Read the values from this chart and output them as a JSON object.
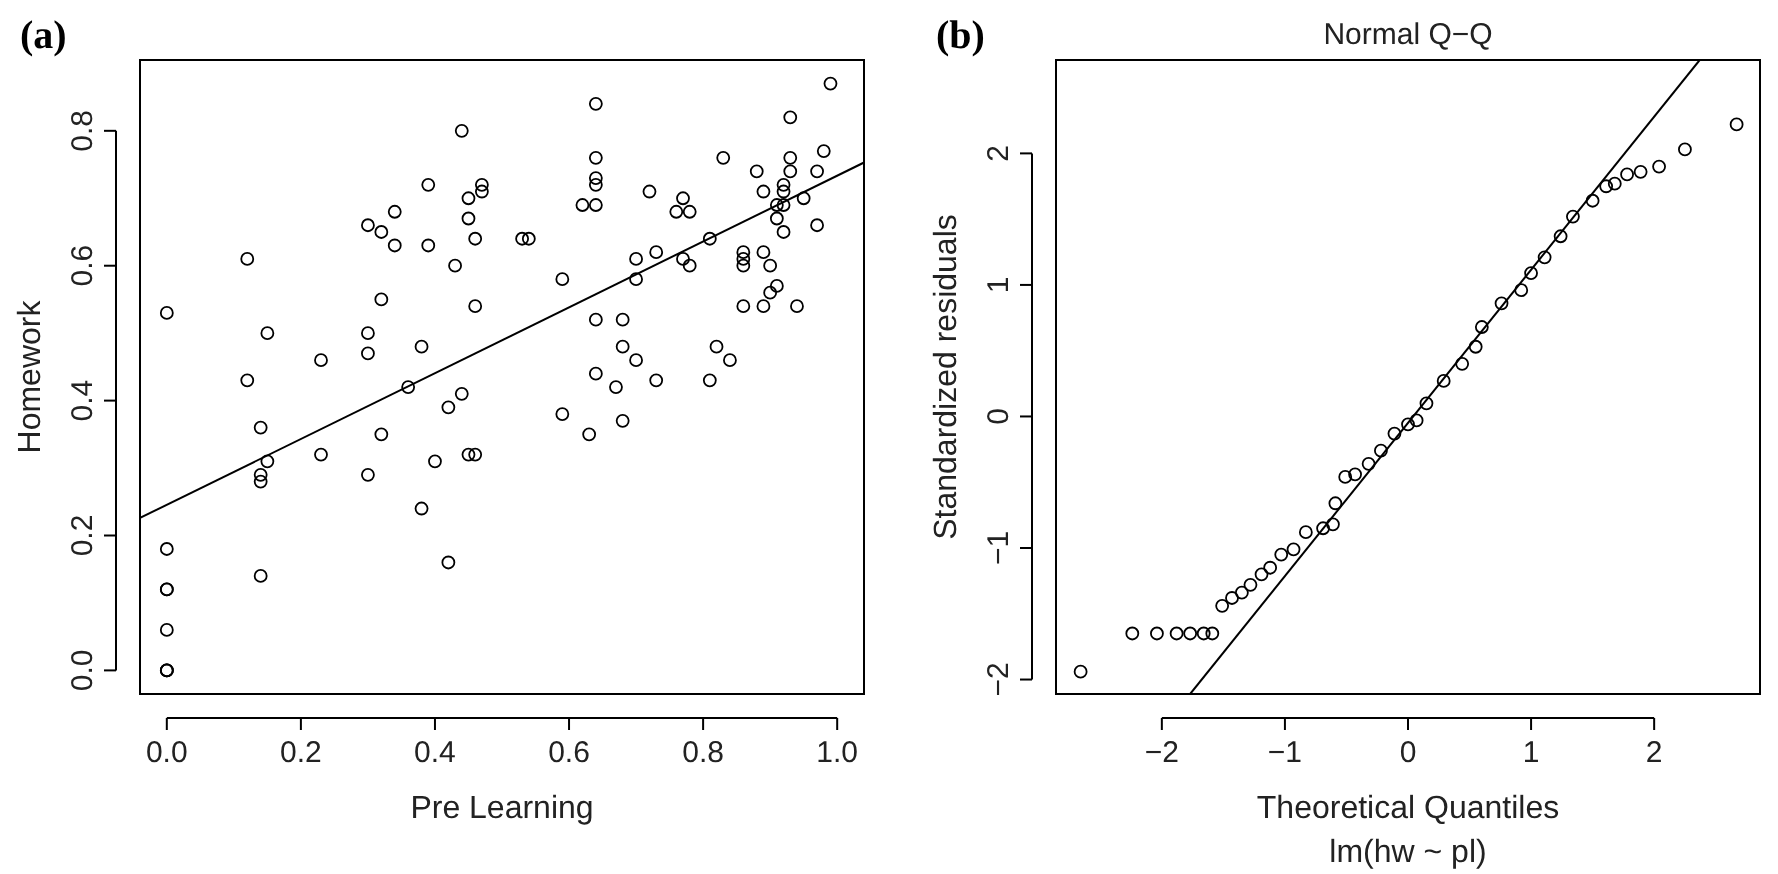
{
  "chart_data": [
    {
      "type": "scatter",
      "ylabel": "Homework",
      "xlabel": "Pre Learning",
      "annotations": [
        "(a)"
      ],
      "xlim": [
        -0.04,
        1.04
      ],
      "ylim": [
        -0.035,
        0.905
      ],
      "xticks": [
        {
          "value": 0,
          "label": "0.0"
        },
        {
          "value": 0.2,
          "label": "0.2"
        },
        {
          "value": 0.4,
          "label": "0.4"
        },
        {
          "value": 0.6,
          "label": "0.6"
        },
        {
          "value": 0.8,
          "label": "0.8"
        },
        {
          "value": 1,
          "label": "1.0"
        }
      ],
      "yticks": [
        {
          "value": 0,
          "label": "0.0"
        },
        {
          "value": 0.2,
          "label": "0.2"
        },
        {
          "value": 0.4,
          "label": "0.4"
        },
        {
          "value": 0.6,
          "label": "0.6"
        },
        {
          "value": 0.8,
          "label": "0.8"
        }
      ],
      "series": [
        {
          "marker": "circle",
          "color": "#000000",
          "x": [
            0,
            0.12,
            0.15,
            0.12,
            0.23,
            0.3,
            0.32,
            0.34,
            0.34,
            0.39,
            0.39,
            0.32,
            0.3,
            0.3,
            0.38,
            0.36,
            0.43,
            0.44,
            0.45,
            0.45,
            0.46,
            0.46,
            0.47,
            0.47,
            0.44,
            0.53,
            0.54,
            0.59,
            0.62,
            0.64,
            0.64,
            0.64,
            0.64,
            0.64,
            0.64,
            0.68,
            0.68,
            0.7,
            0.64,
            0.67,
            0.73,
            0.7,
            0.7,
            0.73,
            0.72,
            0.76,
            0.77,
            0.78,
            0.77,
            0.78,
            0.81,
            0.83,
            0.82,
            0.84,
            0.81,
            0.86,
            0.86,
            0.86,
            0.89,
            0.86,
            0.89,
            0.9,
            0.9,
            0.91,
            0.94,
            0.88,
            0.89,
            0.91,
            0.91,
            0.92,
            0.92,
            0.92,
            0.92,
            0.93,
            0.93,
            0.93,
            0.95,
            0.97,
            0.97,
            0.98,
            0.99,
            0.14,
            0.14,
            0.14,
            0.15,
            0.14,
            0.23,
            0.3,
            0.32,
            0.38,
            0.4,
            0.42,
            0.42,
            0.45,
            0.46,
            0.59,
            0.63,
            0.68,
            0,
            0,
            0,
            0,
            0,
            0,
            0
          ],
          "values": [
            0.53,
            0.61,
            0.5,
            0.43,
            0.46,
            0.66,
            0.65,
            0.68,
            0.63,
            0.72,
            0.63,
            0.55,
            0.5,
            0.47,
            0.48,
            0.42,
            0.6,
            0.8,
            0.7,
            0.67,
            0.64,
            0.54,
            0.72,
            0.71,
            0.41,
            0.64,
            0.64,
            0.58,
            0.69,
            0.69,
            0.84,
            0.76,
            0.73,
            0.72,
            0.52,
            0.52,
            0.48,
            0.46,
            0.44,
            0.42,
            0.43,
            0.61,
            0.58,
            0.62,
            0.71,
            0.68,
            0.7,
            0.68,
            0.61,
            0.6,
            0.64,
            0.76,
            0.48,
            0.46,
            0.43,
            0.62,
            0.61,
            0.6,
            0.62,
            0.54,
            0.54,
            0.6,
            0.56,
            0.57,
            0.54,
            0.74,
            0.71,
            0.69,
            0.67,
            0.65,
            0.69,
            0.72,
            0.71,
            0.74,
            0.76,
            0.82,
            0.7,
            0.74,
            0.66,
            0.77,
            0.87,
            0.36,
            0.29,
            0.28,
            0.31,
            0.14,
            0.32,
            0.29,
            0.35,
            0.24,
            0.31,
            0.39,
            0.16,
            0.32,
            0.32,
            0.38,
            0.35,
            0.37,
            0.18,
            0.12,
            0.12,
            0.06,
            0,
            0,
            0
          ]
        },
        {
          "type": "line",
          "color": "#000000",
          "x": [
            -0.04,
            1.04
          ],
          "values": [
            0.226,
            0.753
          ]
        }
      ]
    },
    {
      "type": "scatter",
      "title": "Normal Q−Q",
      "xlabel": "Theoretical Quantiles",
      "subtitle": "lm(hw ~ pl)",
      "ylabel": "Standardized residuals",
      "annotations": [
        "(b)"
      ],
      "xlim": [
        -2.86,
        2.86
      ],
      "ylim": [
        -2.11,
        2.71
      ],
      "xticks": [
        {
          "value": -2,
          "label": "−2"
        },
        {
          "value": -1,
          "label": "−1"
        },
        0,
        1,
        2
      ],
      "yticks": [
        {
          "value": -2,
          "label": "−2"
        },
        {
          "value": -1,
          "label": "−1"
        },
        0,
        1,
        2
      ],
      "series": [
        {
          "marker": "circle",
          "color": "#000000",
          "x": [
            -2.66,
            -2.24,
            -2.04,
            -1.88,
            -1.77,
            -1.66,
            -1.59,
            -1.51,
            -1.43,
            -1.35,
            -1.28,
            -1.19,
            -1.12,
            -1.03,
            -0.93,
            -0.83,
            -0.69,
            -0.61,
            -0.59,
            -0.51,
            -0.43,
            -0.32,
            -0.22,
            -0.11,
            0,
            0.07,
            0.15,
            0.29,
            0.44,
            0.55,
            0.6,
            0.76,
            0.92,
            1.0,
            1.11,
            1.24,
            1.34,
            1.5,
            1.61,
            1.68,
            1.78,
            1.89,
            2.04,
            2.25,
            2.67
          ],
          "values": [
            -1.94,
            -1.65,
            -1.65,
            -1.65,
            -1.65,
            -1.65,
            -1.65,
            -1.44,
            -1.38,
            -1.34,
            -1.28,
            -1.2,
            -1.15,
            -1.05,
            -1.01,
            -0.88,
            -0.85,
            -0.82,
            -0.66,
            -0.46,
            -0.44,
            -0.36,
            -0.26,
            -0.13,
            -0.06,
            -0.03,
            0.1,
            0.27,
            0.4,
            0.53,
            0.68,
            0.86,
            0.96,
            1.09,
            1.21,
            1.37,
            1.52,
            1.64,
            1.75,
            1.77,
            1.84,
            1.86,
            1.9,
            2.03,
            2.22
          ]
        },
        {
          "type": "line",
          "color": "#000000",
          "x": [
            -1.77,
            2.37
          ],
          "values": [
            -2.11,
            2.71
          ]
        }
      ]
    }
  ]
}
